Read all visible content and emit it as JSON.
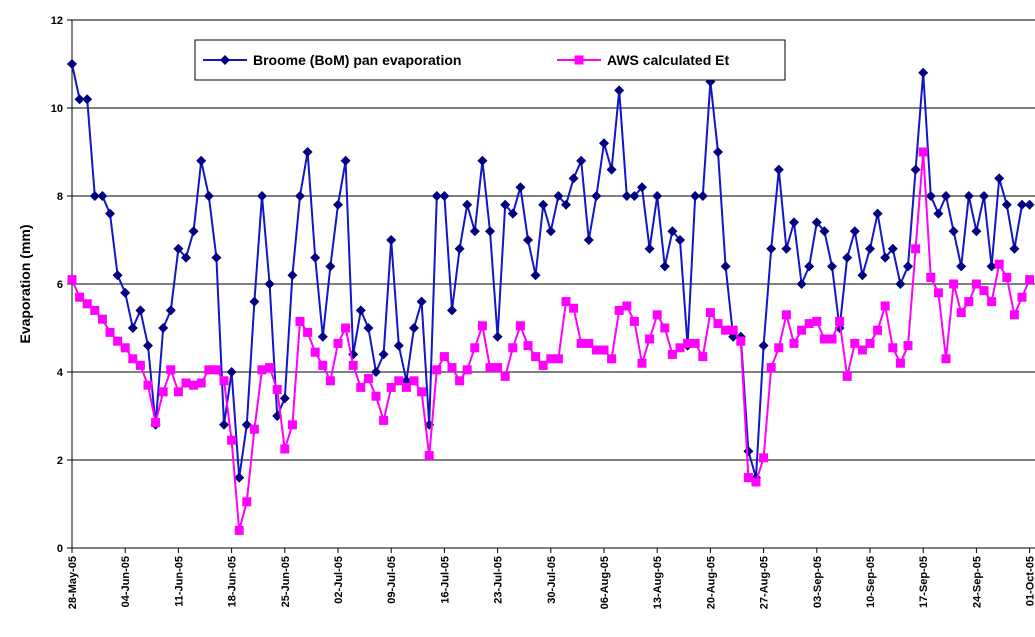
{
  "chart_data": {
    "type": "line",
    "ylabel": "Evaporation (mm)",
    "categories": [
      "28-May-05",
      null,
      null,
      null,
      null,
      null,
      null,
      "04-Jun-05",
      null,
      null,
      null,
      null,
      null,
      null,
      "11-Jun-05",
      null,
      null,
      null,
      null,
      null,
      null,
      "18-Jun-05",
      null,
      null,
      null,
      null,
      null,
      null,
      "25-Jun-05",
      null,
      null,
      null,
      null,
      null,
      null,
      "02-Jul-05",
      null,
      null,
      null,
      null,
      null,
      null,
      "09-Jul-05",
      null,
      null,
      null,
      null,
      null,
      null,
      "16-Jul-05",
      null,
      null,
      null,
      null,
      null,
      null,
      "23-Jul-05",
      null,
      null,
      null,
      null,
      null,
      null,
      "30-Jul-05",
      null,
      null,
      null,
      null,
      null,
      null,
      "06-Aug-05",
      null,
      null,
      null,
      null,
      null,
      null,
      "13-Aug-05",
      null,
      null,
      null,
      null,
      null,
      null,
      "20-Aug-05",
      null,
      null,
      null,
      null,
      null,
      null,
      "27-Aug-05",
      null,
      null,
      null,
      null,
      null,
      null,
      "03-Sep-05",
      null,
      null,
      null,
      null,
      null,
      null,
      "10-Sep-05",
      null,
      null,
      null,
      null,
      null,
      null,
      "17-Sep-05",
      null,
      null,
      null,
      null,
      null,
      null,
      "24-Sep-05",
      null,
      null,
      null,
      null,
      null,
      null,
      "01-Oct-05"
    ],
    "series": [
      {
        "name": "Broome (BoM) pan evaporation",
        "color": "#1414c8",
        "marker_color": "#000080",
        "values": [
          11.0,
          10.2,
          10.2,
          8.0,
          8.0,
          7.6,
          6.2,
          5.8,
          5.0,
          5.4,
          4.6,
          2.8,
          5.0,
          5.4,
          6.8,
          6.6,
          7.2,
          8.8,
          8.0,
          6.6,
          2.8,
          4.0,
          1.6,
          2.8,
          5.6,
          8.0,
          6.0,
          3.0,
          3.4,
          6.2,
          8.0,
          9.0,
          6.6,
          4.8,
          6.4,
          7.8,
          8.8,
          4.4,
          5.4,
          5.0,
          4.0,
          4.4,
          7.0,
          4.6,
          3.8,
          5.0,
          5.6,
          2.8,
          8.0,
          8.0,
          5.4,
          6.8,
          7.8,
          7.2,
          8.8,
          7.2,
          4.8,
          7.8,
          7.6,
          8.2,
          7.0,
          6.2,
          7.8,
          7.2,
          8.0,
          7.8,
          8.4,
          8.8,
          7.0,
          8.0,
          9.2,
          8.6,
          10.4,
          8.0,
          8.0,
          8.2,
          6.8,
          8.0,
          6.4,
          7.2,
          7.0,
          4.6,
          8.0,
          8.0,
          10.6,
          9.0,
          6.4,
          4.8,
          4.8,
          2.2,
          1.6,
          4.6,
          6.8,
          8.6,
          6.8,
          7.4,
          6.0,
          6.4,
          7.4,
          7.2,
          6.4,
          5.0,
          6.6,
          7.2,
          6.2,
          6.8,
          7.6,
          6.6,
          6.8,
          6.0,
          6.4,
          8.6,
          10.8,
          8.0,
          7.6,
          8.0,
          7.2,
          6.4,
          8.0,
          7.2,
          8.0,
          6.4,
          8.4,
          7.8,
          6.8,
          7.8,
          7.8
        ]
      },
      {
        "name": "AWS calculated Et",
        "color": "#ff00ff",
        "marker_color": "#ff00ff",
        "values": [
          6.1,
          5.7,
          5.55,
          5.4,
          5.2,
          4.9,
          4.7,
          4.55,
          4.3,
          4.15,
          3.7,
          2.85,
          3.55,
          4.05,
          3.55,
          3.75,
          3.7,
          3.75,
          4.05,
          4.05,
          3.8,
          2.45,
          0.4,
          1.05,
          2.7,
          4.05,
          4.1,
          3.6,
          2.25,
          2.8,
          5.15,
          4.9,
          4.45,
          4.15,
          3.8,
          4.65,
          5.0,
          4.15,
          3.65,
          3.85,
          3.45,
          2.9,
          3.65,
          3.8,
          3.65,
          3.8,
          3.55,
          2.1,
          4.05,
          4.35,
          4.1,
          3.8,
          4.05,
          4.55,
          5.05,
          4.1,
          4.1,
          3.9,
          4.55,
          5.05,
          4.6,
          4.35,
          4.15,
          4.3,
          4.3,
          5.6,
          5.45,
          4.65,
          4.65,
          4.5,
          4.5,
          4.3,
          5.4,
          5.5,
          5.15,
          4.2,
          4.75,
          5.3,
          5.0,
          4.4,
          4.55,
          4.65,
          4.65,
          4.35,
          5.35,
          5.1,
          4.95,
          4.95,
          4.7,
          1.6,
          1.5,
          2.05,
          4.1,
          4.55,
          5.3,
          4.65,
          4.95,
          5.1,
          5.15,
          4.75,
          4.75,
          5.15,
          3.9,
          4.65,
          4.5,
          4.65,
          4.95,
          5.5,
          4.55,
          4.2,
          4.6,
          6.8,
          9.0,
          6.15,
          5.8,
          4.3,
          6.0,
          5.35,
          5.6,
          6.0,
          5.85,
          5.6,
          6.45,
          6.15,
          5.3,
          5.7,
          6.1
        ]
      }
    ],
    "ylim": [
      0,
      12
    ],
    "yticks": [
      0,
      2,
      4,
      6,
      8,
      10,
      12
    ],
    "grid": true,
    "legend": "top"
  }
}
